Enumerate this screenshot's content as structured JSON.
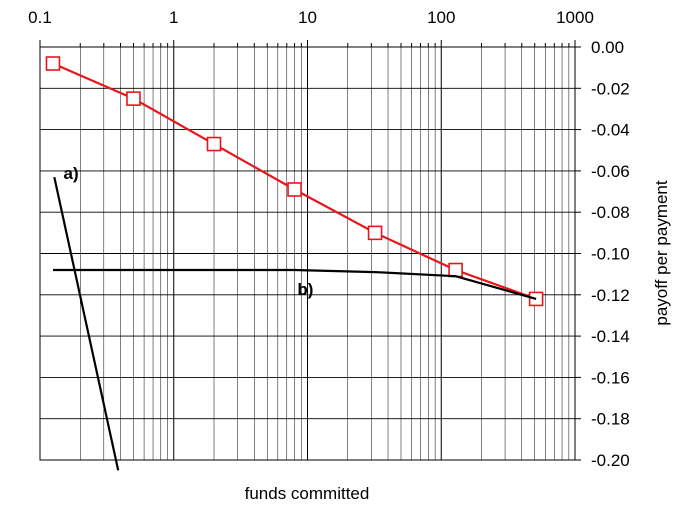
{
  "chart_data": {
    "type": "line",
    "title": "",
    "xlabel": "funds committed",
    "ylabel": "payoff per payment",
    "x_scale": "log",
    "xlim": [
      0.1,
      1000
    ],
    "ylim": [
      -0.2,
      0.0
    ],
    "x_ticks": [
      "0.1",
      "1",
      "10",
      "100",
      "1000"
    ],
    "y_ticks": [
      "0.00",
      "-0.02",
      "-0.04",
      "-0.06",
      "-0.08",
      "-0.10",
      "-0.12",
      "-0.14",
      "-0.16",
      "-0.18",
      "-0.20"
    ],
    "grid": true,
    "legend": "none",
    "series": [
      {
        "color": "#e8161b",
        "marker": "open-square",
        "x": [
          0.125,
          0.5,
          2,
          8,
          32,
          128,
          512
        ],
        "y": [
          -0.008,
          -0.025,
          -0.047,
          -0.069,
          -0.09,
          -0.108,
          -0.122
        ]
      },
      {
        "color": "#000000",
        "marker": "none",
        "x": [
          0.125,
          0.5,
          2,
          8,
          32,
          128,
          512
        ],
        "y": [
          -0.108,
          -0.108,
          -0.108,
          -0.108,
          -0.109,
          -0.111,
          -0.122
        ]
      },
      {
        "color": "#000000",
        "marker": "none",
        "x": [
          0.128,
          0.384
        ],
        "y": [
          -0.063,
          -0.205
        ]
      }
    ],
    "annotations": [
      {
        "text": "a)",
        "x": 0.15,
        "y": -0.064
      },
      {
        "text": "b)",
        "x": 8.4,
        "y": -0.12
      }
    ]
  }
}
